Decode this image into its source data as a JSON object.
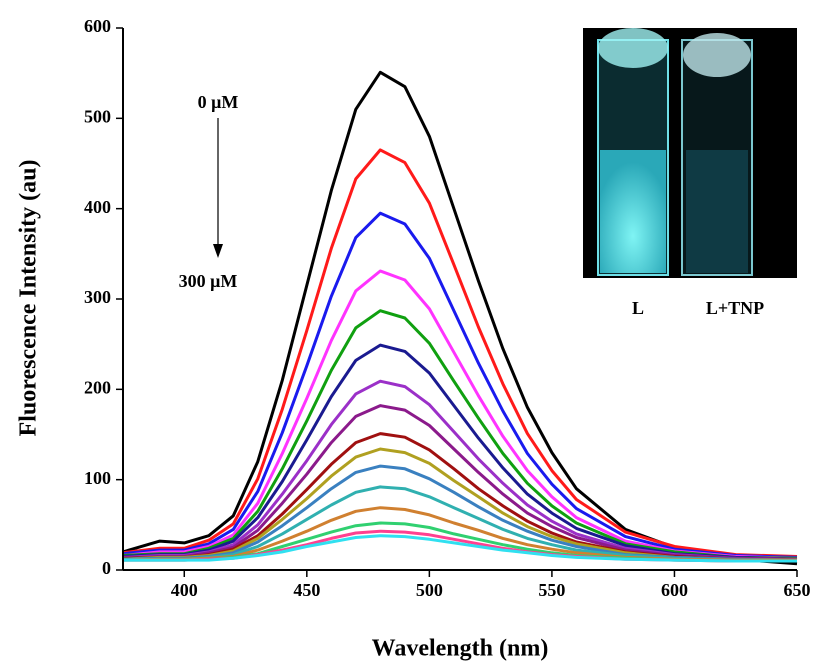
{
  "chart_data": {
    "type": "line",
    "xlabel": "Wavelength (nm)",
    "ylabel": "Fluorescence Intensity (au)",
    "annotations": [
      "0 μM",
      "300 μM"
    ],
    "inset_labels": [
      "L",
      "L+TNP"
    ],
    "xlim": [
      375,
      650
    ],
    "xticks": [
      400,
      450,
      500,
      550,
      600,
      650
    ],
    "ylim": [
      0,
      600
    ],
    "yticks": [
      0,
      100,
      200,
      300,
      400,
      500,
      600
    ],
    "x": [
      375,
      390,
      400,
      410,
      420,
      430,
      440,
      450,
      460,
      470,
      480,
      490,
      500,
      510,
      520,
      530,
      540,
      550,
      560,
      580,
      600,
      625,
      650
    ],
    "series": [
      {
        "color": "#000000",
        "values": [
          20,
          32,
          30,
          38,
          60,
          120,
          210,
          315,
          420,
          510,
          551,
          535,
          480,
          400,
          320,
          245,
          180,
          130,
          90,
          45,
          25,
          12,
          7
        ]
      },
      {
        "color": "#ff1a1a",
        "values": [
          19,
          24,
          24,
          33,
          51,
          101,
          178,
          265,
          356,
          433,
          465,
          451,
          406,
          338,
          269,
          206,
          151,
          110,
          78,
          42,
          26,
          17,
          15
        ]
      },
      {
        "color": "#1a1aee",
        "values": [
          18,
          22,
          22,
          29,
          45,
          87,
          152,
          226,
          303,
          368,
          395,
          383,
          345,
          287,
          229,
          176,
          129,
          95,
          68,
          37,
          23,
          16,
          14
        ]
      },
      {
        "color": "#ff33ff",
        "values": [
          16,
          20,
          20,
          26,
          39,
          74,
          129,
          190,
          254,
          309,
          331,
          321,
          289,
          241,
          193,
          148,
          110,
          81,
          58,
          32,
          21,
          15,
          13
        ]
      },
      {
        "color": "#10a010",
        "values": [
          16,
          18,
          18,
          24,
          35,
          65,
          112,
          165,
          221,
          268,
          287,
          279,
          251,
          209,
          168,
          129,
          96,
          71,
          52,
          29,
          20,
          14,
          13
        ]
      },
      {
        "color": "#1a1a90",
        "values": [
          15,
          17,
          17,
          22,
          32,
          58,
          98,
          144,
          192,
          232,
          249,
          242,
          218,
          182,
          146,
          113,
          84,
          63,
          46,
          27,
          18,
          14,
          12
        ]
      },
      {
        "color": "#9b30c8",
        "values": [
          14,
          16,
          16,
          20,
          28,
          50,
          84,
          121,
          161,
          195,
          209,
          203,
          183,
          153,
          123,
          96,
          72,
          54,
          40,
          24,
          17,
          13,
          12
        ]
      },
      {
        "color": "#8b1a8b",
        "values": [
          13,
          15,
          15,
          19,
          25,
          44,
          74,
          106,
          141,
          170,
          182,
          177,
          160,
          134,
          108,
          84,
          63,
          48,
          36,
          22,
          16,
          13,
          12
        ]
      },
      {
        "color": "#a01010",
        "values": [
          13,
          14,
          14,
          17,
          23,
          38,
          62,
          89,
          117,
          141,
          151,
          147,
          133,
          112,
          90,
          71,
          54,
          41,
          31,
          20,
          15,
          12,
          11
        ]
      },
      {
        "color": "#b0a020",
        "values": [
          12,
          14,
          14,
          16,
          21,
          35,
          56,
          79,
          104,
          125,
          134,
          130,
          118,
          99,
          81,
          63,
          48,
          37,
          29,
          19,
          14,
          12,
          11
        ]
      },
      {
        "color": "#3a80c0",
        "values": [
          12,
          13,
          13,
          15,
          19,
          31,
          49,
          69,
          90,
          108,
          115,
          112,
          101,
          86,
          70,
          55,
          43,
          33,
          26,
          17,
          14,
          12,
          11
        ]
      },
      {
        "color": "#30b0b0",
        "values": [
          12,
          12,
          12,
          14,
          17,
          26,
          40,
          56,
          72,
          86,
          92,
          90,
          81,
          69,
          57,
          45,
          35,
          28,
          22,
          16,
          13,
          11,
          11
        ]
      },
      {
        "color": "#d08030",
        "values": [
          11,
          12,
          12,
          13,
          15,
          22,
          32,
          43,
          55,
          65,
          69,
          67,
          61,
          52,
          44,
          35,
          28,
          23,
          19,
          14,
          12,
          11,
          11
        ]
      },
      {
        "color": "#30d070",
        "values": [
          11,
          11,
          11,
          12,
          14,
          18,
          26,
          34,
          42,
          49,
          52,
          51,
          47,
          40,
          34,
          28,
          23,
          19,
          16,
          13,
          11,
          10,
          10
        ]
      },
      {
        "color": "#ff4090",
        "values": [
          11,
          11,
          11,
          12,
          13,
          17,
          22,
          28,
          35,
          41,
          43,
          42,
          39,
          34,
          29,
          24,
          20,
          17,
          15,
          12,
          11,
          10,
          10
        ]
      },
      {
        "color": "#30e0f0",
        "values": [
          11,
          11,
          11,
          11,
          13,
          16,
          20,
          26,
          31,
          36,
          38,
          37,
          34,
          30,
          26,
          22,
          19,
          16,
          14,
          12,
          11,
          10,
          10
        ]
      }
    ]
  }
}
